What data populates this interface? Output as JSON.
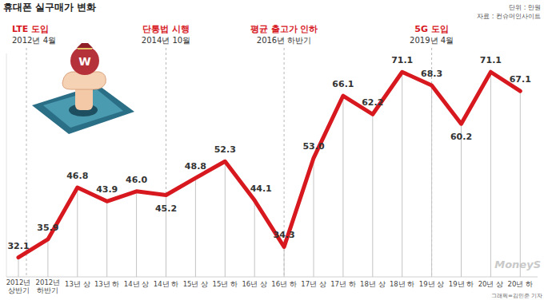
{
  "chart_data": {
    "type": "line",
    "title": "휴대폰 실구매가 변화",
    "unit": "단위 : 만원",
    "source": "자료 : 컨슈머인사이트",
    "categories": [
      "2012년\n상반기",
      "2012년\n하반기",
      "13년 상",
      "13년 하",
      "14년 상",
      "14년 하",
      "15년 상",
      "15년 하",
      "16년 상",
      "16년 하",
      "17년 상",
      "17년 하",
      "18년 상",
      "18년 하",
      "19년 상",
      "19년 하",
      "20년 상",
      "20년 하"
    ],
    "values": [
      32.1,
      35.9,
      46.8,
      43.9,
      46.0,
      45.2,
      48.8,
      52.3,
      44.1,
      34.3,
      53.0,
      66.1,
      62.2,
      71.1,
      68.3,
      60.2,
      71.1,
      67.1
    ],
    "value_labels": [
      "32.1",
      "35.9",
      "46.8",
      "43.9",
      "46.0",
      "45.2",
      "48.8",
      "52.3",
      "44.1",
      "34.3",
      "53.0",
      "66.1",
      "62.2",
      "71.1",
      "68.3",
      "60.2",
      "71.1",
      "67.1"
    ],
    "color": "#d7191f",
    "ylim": [
      28,
      75
    ],
    "tick_labels": "x",
    "data_labels": true,
    "grid": false,
    "marker": "none",
    "line_style": "solid",
    "annotations": [
      {
        "text": "LTE 도입",
        "date": "2012년 4월",
        "category": "2012년\n상반기"
      },
      {
        "text": "단통법 시행",
        "date": "2014년 10월",
        "category": "14년 하"
      },
      {
        "text": "평균 출고가 인하",
        "date": "2016년 하반기",
        "category": "16년 하"
      },
      {
        "text": "5G 도입",
        "date": "2019년 4월",
        "category": "19년 상"
      }
    ],
    "icon_label": "W",
    "credit": "그래픽=김민준 기자",
    "watermark": "MoneyS"
  }
}
